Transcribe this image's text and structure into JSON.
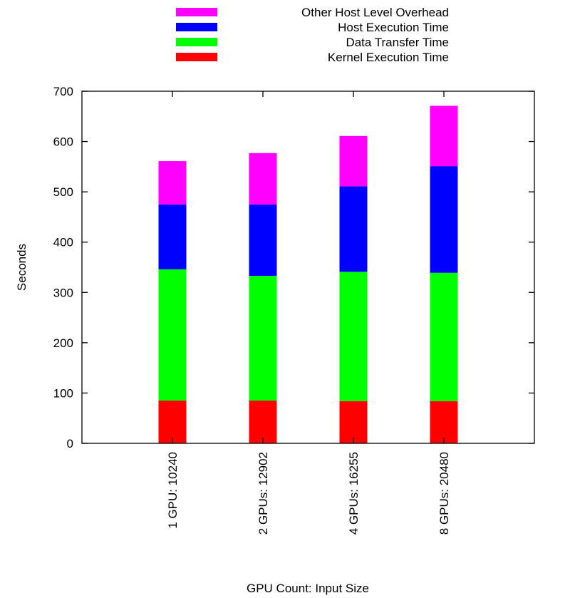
{
  "chart_data": {
    "type": "bar",
    "stacked": true,
    "title": "",
    "xlabel": "GPU Count: Input Size",
    "ylabel": "Seconds",
    "ylim": [
      0,
      700
    ],
    "yticks": [
      0,
      100,
      200,
      300,
      400,
      500,
      600,
      700
    ],
    "grid": false,
    "legend_position": "top",
    "categories": [
      "1 GPU: 10240",
      "2 GPUs: 12902",
      "4 GPUs: 16255",
      "8 GPUs: 20480"
    ],
    "series": [
      {
        "name": "Kernel Execution Time",
        "color": "#ff0000",
        "values": [
          85,
          85,
          84,
          84
        ]
      },
      {
        "name": "Data Transfer Time",
        "color": "#00ff00",
        "values": [
          261,
          248,
          257,
          255
        ]
      },
      {
        "name": "Host Execution Time",
        "color": "#0000ff",
        "values": [
          129,
          142,
          170,
          212
        ]
      },
      {
        "name": "Other Host Level Overhead",
        "color": "#ff00ff",
        "values": [
          86,
          102,
          100,
          120
        ]
      }
    ]
  }
}
